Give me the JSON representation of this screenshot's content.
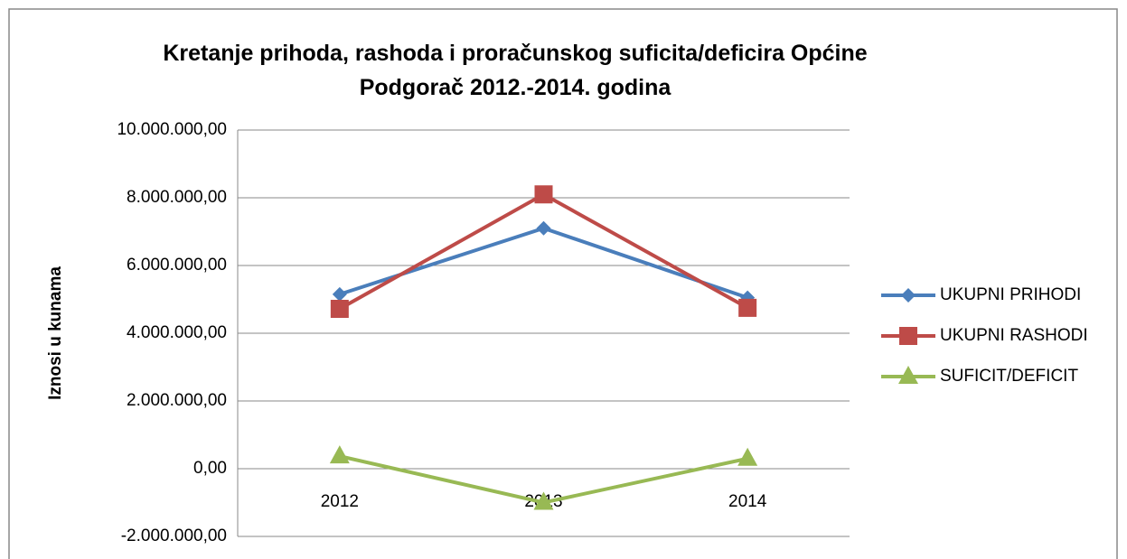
{
  "chart_data": {
    "type": "line",
    "title": "Kretanje prihoda, rashoda i proračunskog suficita/deficira Općine Podgorač 2012.-2014. godina",
    "y_label": "Iznosi u kunama",
    "categories": [
      "2012",
      "2013",
      "2014"
    ],
    "series": [
      {
        "name": "UKUPNI PRIHODI",
        "color": "#4a7ebb",
        "marker": "diamond",
        "values": [
          5150000,
          7100000,
          5050000
        ]
      },
      {
        "name": "UKUPNI RASHODI",
        "color": "#be4b48",
        "marker": "square",
        "values": [
          4720000,
          8100000,
          4750000
        ]
      },
      {
        "name": "SUFICIT/DEFICIT",
        "color": "#98b954",
        "marker": "triangle",
        "values": [
          370000,
          -1000000,
          300000
        ]
      }
    ],
    "ylim": [
      -2000000,
      10000000
    ],
    "yticks": [
      {
        "value": -2000000,
        "label": "-2.000.000,00"
      },
      {
        "value": 0,
        "label": "0,00"
      },
      {
        "value": 2000000,
        "label": "2.000.000,00"
      },
      {
        "value": 4000000,
        "label": "4.000.000,00"
      },
      {
        "value": 6000000,
        "label": "6.000.000,00"
      },
      {
        "value": 8000000,
        "label": "8.000.000,00"
      },
      {
        "value": 10000000,
        "label": "10.000.000,00"
      }
    ],
    "grid": true,
    "legend": "right"
  }
}
